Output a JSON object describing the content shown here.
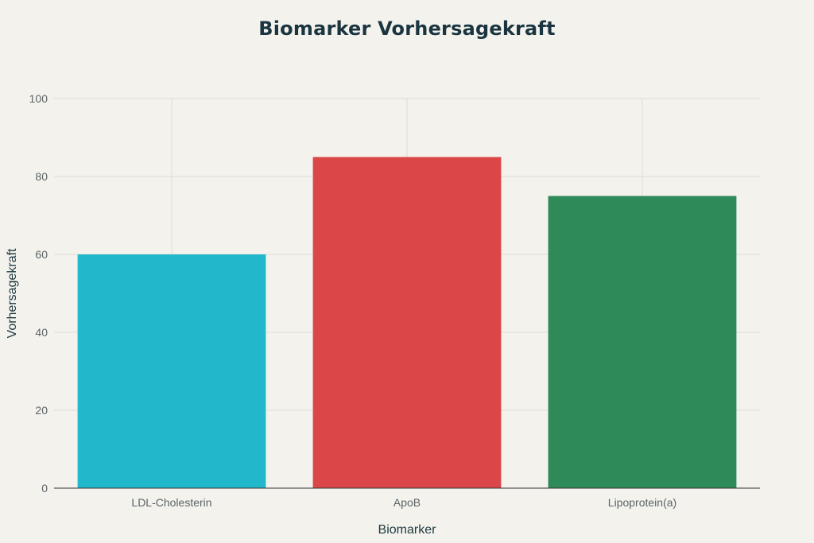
{
  "chart_data": {
    "type": "bar",
    "title": "Biomarker Vorhersagekraft",
    "xlabel": "Biomarker",
    "ylabel": "Vorhersagekraft",
    "categories": [
      "LDL-Cholesterin",
      "ApoB",
      "Lipoprotein(a)"
    ],
    "values": [
      60,
      85,
      75
    ],
    "colors": [
      "#21b8cc",
      "#db4748",
      "#2e8a58"
    ],
    "ylim": [
      0,
      100
    ],
    "yticks": [
      "0",
      "20",
      "40",
      "60",
      "80",
      "100"
    ],
    "grid": true,
    "legend": "none"
  }
}
